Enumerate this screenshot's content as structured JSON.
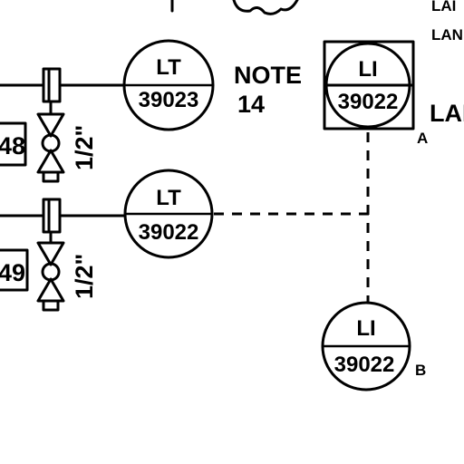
{
  "instruments": {
    "lt_39023": {
      "func": "LT",
      "num": "39023",
      "note": "NOTE",
      "note_num": "14"
    },
    "li_39022a": {
      "func": "LI",
      "num": "39022",
      "suffix": "A"
    },
    "lt_39022": {
      "func": "LT",
      "num": "39022"
    },
    "li_39022b": {
      "func": "LI",
      "num": "39022",
      "suffix": "B"
    }
  },
  "valves": {
    "upper_size": "1/2\"",
    "lower_size": "1/2\""
  },
  "boxes": {
    "upper_tag": "48",
    "lower_tag": "49"
  },
  "edge_labels": {
    "top_right_1": "LAI",
    "top_right_2": "LAN",
    "right_alarm": "LAL"
  }
}
